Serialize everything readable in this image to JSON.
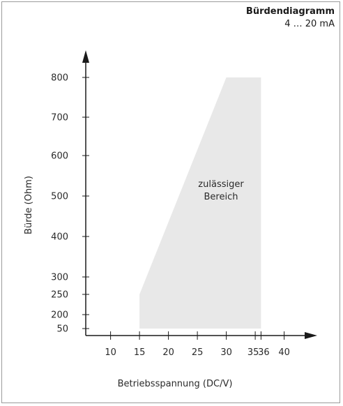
{
  "header": {
    "title": "Bürdendiagramm",
    "subtitle": "4 … 20 mA"
  },
  "chart_data": {
    "type": "area",
    "title": "Bürdendiagramm",
    "subtitle": "4 … 20 mA",
    "xlabel": "Betriebsspannung (DC/V)",
    "ylabel": "Bürde (Ohm)",
    "x_ticks": [
      10,
      15,
      20,
      25,
      30,
      35,
      36,
      40
    ],
    "y_ticks": [
      50,
      200,
      250,
      300,
      400,
      500,
      600,
      700,
      800
    ],
    "region": {
      "name": "zulässiger Bereich",
      "label_lines": [
        "zulässiger",
        "Bereich"
      ],
      "color": "#e8e8e8",
      "polygon": [
        [
          15,
          50
        ],
        [
          15,
          250
        ],
        [
          30,
          800
        ],
        [
          36,
          800
        ],
        [
          36,
          50
        ]
      ]
    },
    "grid": false,
    "legend": "none"
  }
}
